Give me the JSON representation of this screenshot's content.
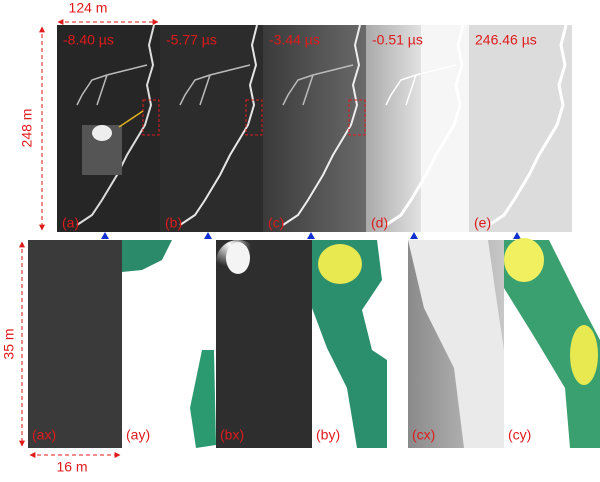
{
  "scale": {
    "top_width": "124 m",
    "top_height": "248 m",
    "bottom_height": "35 m",
    "bottom_width": "16 m"
  },
  "top_panels": [
    {
      "label": "(a)",
      "time": "-8.40 µs"
    },
    {
      "label": "(b)",
      "time": "-5.77 µs"
    },
    {
      "label": "(c)",
      "time": "-3.44 µs"
    },
    {
      "label": "(d)",
      "time": "-0.51 µs"
    },
    {
      "label": "(e)",
      "time": "246.46 µs"
    }
  ],
  "bottom_panels": [
    {
      "label": "(ax)"
    },
    {
      "label": "(ay)"
    },
    {
      "label": "(bx)"
    },
    {
      "label": "(by)"
    },
    {
      "label": "(cx)"
    },
    {
      "label": "(cy)"
    }
  ]
}
